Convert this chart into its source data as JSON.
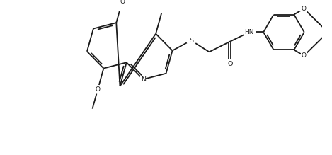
{
  "background_color": "#ffffff",
  "line_color": "#1a1a1a",
  "line_width": 1.3,
  "figsize": [
    4.69,
    2.19
  ],
  "dpi": 100,
  "xlim": [
    0,
    9.5
  ],
  "ylim": [
    0,
    4.38
  ]
}
